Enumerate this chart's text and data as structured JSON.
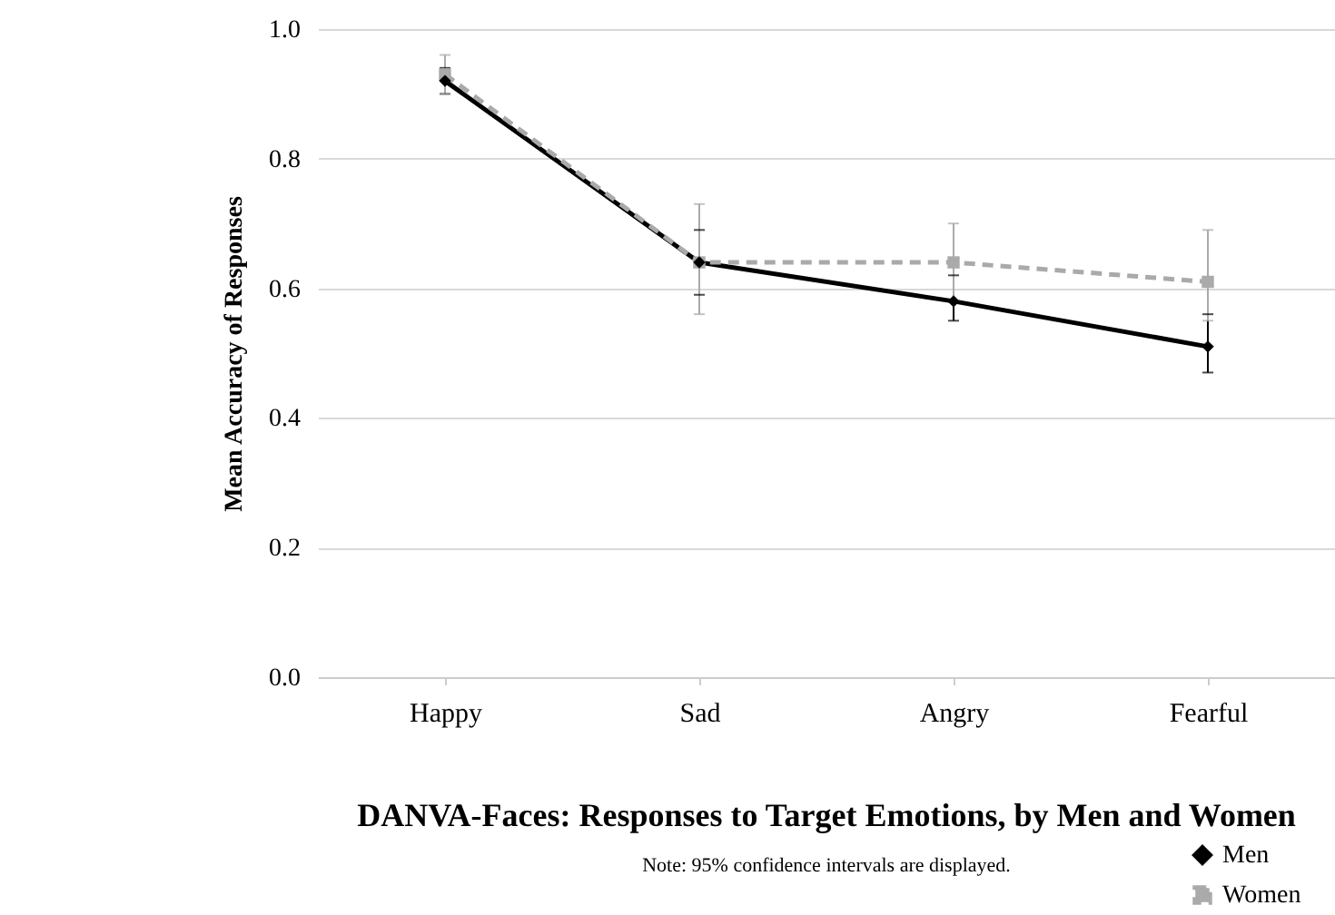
{
  "chart_data": {
    "type": "line",
    "title": "DANVA-Faces: Responses to Target Emotions, by Men and Women",
    "ylabel": "Mean Accuracy of Responses",
    "annotations": [
      "Note: 95% confidence intervals are displayed."
    ],
    "categories": [
      "Happy",
      "Sad",
      "Angry",
      "Fearful"
    ],
    "series": [
      {
        "name": "Men",
        "color": "#000000",
        "marker": "diamond",
        "line_style": "solid",
        "values": [
          0.92,
          0.64,
          0.58,
          0.51
        ],
        "errors": [
          [
            0.9,
            0.94
          ],
          [
            0.59,
            0.69
          ],
          [
            0.55,
            0.62
          ],
          [
            0.47,
            0.56
          ]
        ]
      },
      {
        "name": "Women",
        "color": "#aaaaaa",
        "marker": "square",
        "line_style": "dashed",
        "values": [
          0.93,
          0.64,
          0.64,
          0.61
        ],
        "errors": [
          [
            0.9,
            0.96
          ],
          [
            0.56,
            0.73
          ],
          [
            0.58,
            0.7
          ],
          [
            0.55,
            0.69
          ]
        ]
      }
    ],
    "ylim": [
      0,
      1
    ],
    "yticks": [
      {
        "value": 0,
        "label": "0.0"
      },
      {
        "value": 0.2,
        "label": "0.2"
      },
      {
        "value": 0.4,
        "label": "0.4"
      },
      {
        "value": 0.6,
        "label": "0.6"
      },
      {
        "value": 0.8,
        "label": "0.8"
      },
      {
        "value": 1,
        "label": "1.0"
      }
    ],
    "grid": "y",
    "legend": "bottom right"
  }
}
